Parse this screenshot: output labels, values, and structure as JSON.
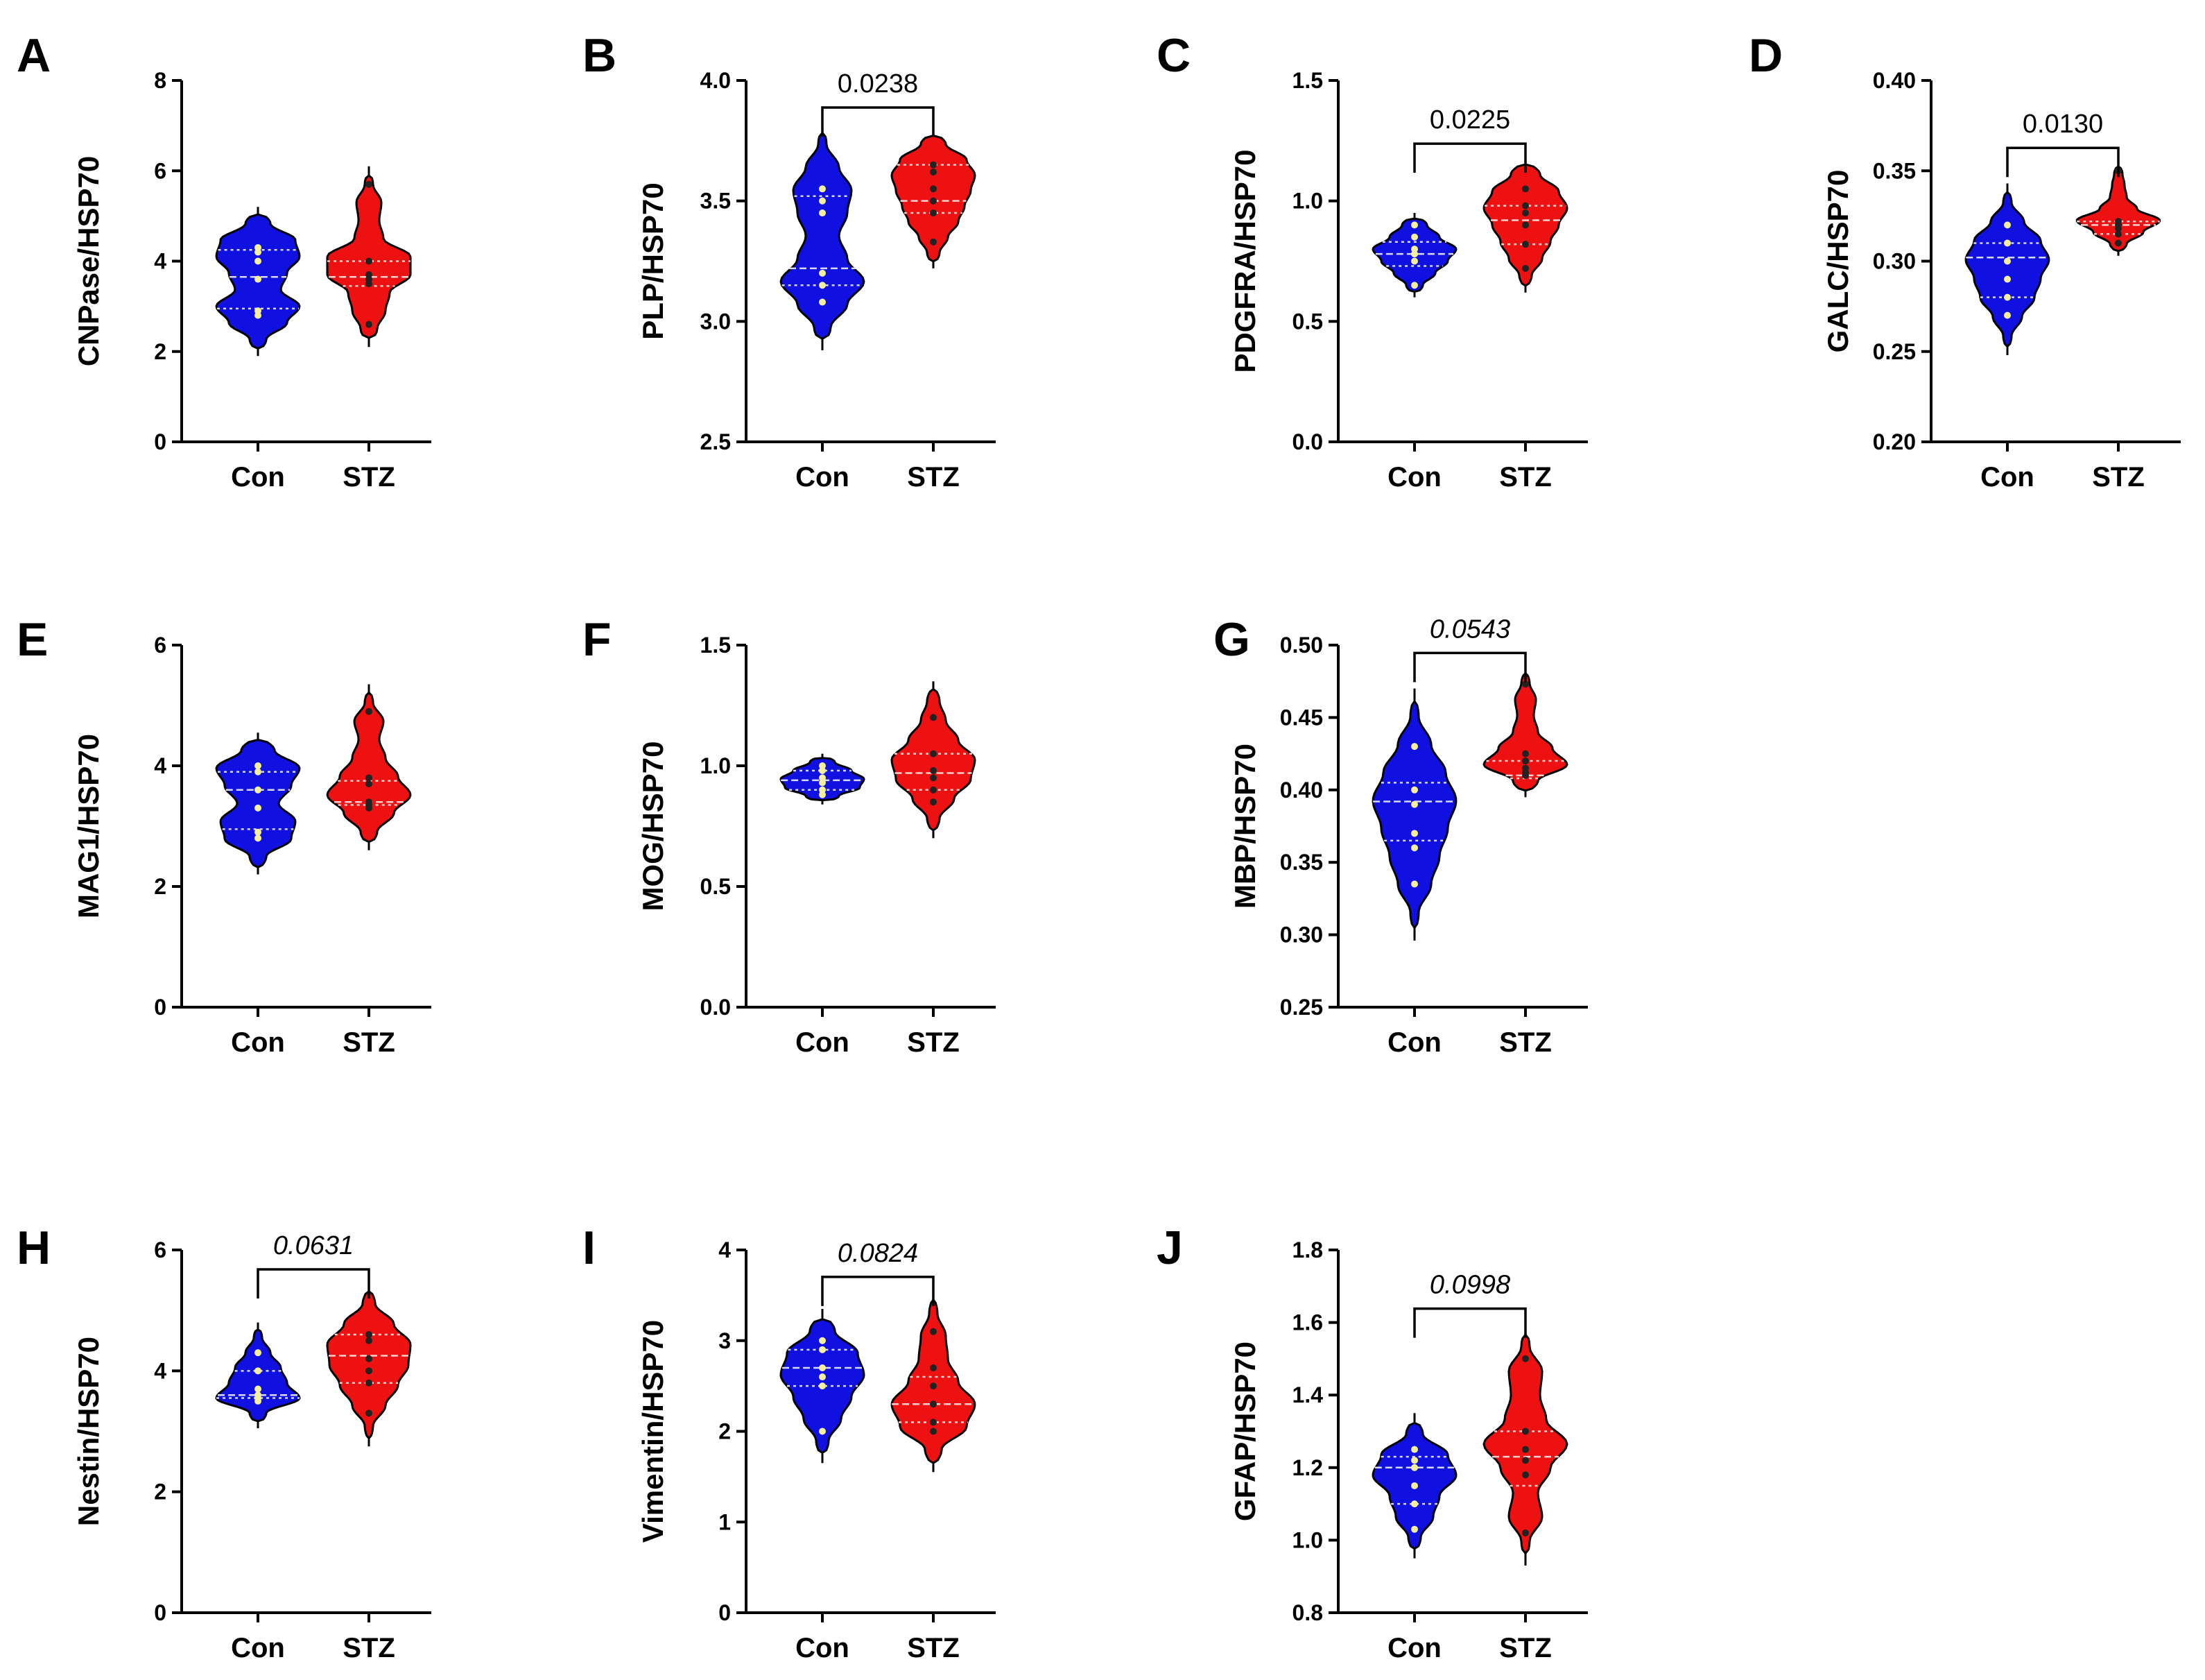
{
  "colors": {
    "con": "#1010e0",
    "stz": "#ee1111",
    "outline": "#000000",
    "point_con": "#f4f0a0",
    "point_stz": "#222222"
  },
  "chart_data": [
    {
      "panel": "A",
      "type": "violin",
      "ylabel": "CNPase/HSP70",
      "ylim": [
        0,
        8
      ],
      "yticks": [
        "0",
        "2",
        "4",
        "6",
        "8"
      ],
      "categories": [
        "Con",
        "STZ"
      ],
      "series": [
        {
          "name": "Con",
          "values": [
            2.8,
            2.9,
            3.6,
            4.0,
            4.2,
            4.3
          ],
          "min": 1.9,
          "max": 5.2,
          "quartiles": [
            2.95,
            3.65,
            4.25
          ],
          "shape": [
            0.2,
            0.7,
            1.0,
            0.55,
            0.7,
            1.0,
            0.9,
            0.3
          ]
        },
        {
          "name": "STZ",
          "values": [
            2.6,
            3.5,
            3.6,
            3.7,
            4.0,
            5.7
          ],
          "min": 2.1,
          "max": 6.1,
          "quartiles": [
            3.45,
            3.65,
            4.0
          ],
          "shape": [
            0.2,
            0.4,
            0.5,
            1.0,
            1.0,
            0.35,
            0.25,
            0.3,
            0.1
          ]
        }
      ],
      "pvalue": ""
    },
    {
      "panel": "B",
      "type": "violin",
      "ylabel": "PLP/HSP70",
      "ylim": [
        2.5,
        4.0
      ],
      "yticks": [
        "2.5",
        "3.0",
        "3.5",
        "4.0"
      ],
      "categories": [
        "Con",
        "STZ"
      ],
      "series": [
        {
          "name": "Con",
          "values": [
            3.08,
            3.15,
            3.2,
            3.45,
            3.5,
            3.55
          ],
          "min": 2.88,
          "max": 3.83,
          "quartiles": [
            3.15,
            3.22,
            3.52
          ],
          "shape": [
            0.2,
            0.6,
            1.0,
            0.6,
            0.4,
            0.6,
            0.7,
            0.4,
            0.1
          ]
        },
        {
          "name": "STZ",
          "values": [
            3.33,
            3.45,
            3.5,
            3.55,
            3.62,
            3.65
          ],
          "min": 3.22,
          "max": 3.8,
          "quartiles": [
            3.45,
            3.5,
            3.65
          ],
          "shape": [
            0.15,
            0.35,
            0.6,
            0.75,
            0.9,
            1.0,
            0.8,
            0.3
          ]
        }
      ],
      "pvalue": "0.0238",
      "pvalue_italic": false
    },
    {
      "panel": "C",
      "type": "violin",
      "ylabel": "PDGFRA/HSP70",
      "ylim": [
        0,
        1.5
      ],
      "yticks": [
        "0.0",
        "0.5",
        "1.0",
        "1.5"
      ],
      "categories": [
        "Con",
        "STZ"
      ],
      "series": [
        {
          "name": "Con",
          "values": [
            0.65,
            0.75,
            0.78,
            0.8,
            0.85,
            0.9
          ],
          "min": 0.6,
          "max": 0.95,
          "quartiles": [
            0.73,
            0.78,
            0.83
          ],
          "shape": [
            0.2,
            0.5,
            0.8,
            1.0,
            0.6,
            0.3
          ]
        },
        {
          "name": "STZ",
          "values": [
            0.72,
            0.82,
            0.9,
            0.95,
            0.98,
            1.05
          ],
          "min": 0.62,
          "max": 1.18,
          "quartiles": [
            0.82,
            0.92,
            0.98
          ],
          "shape": [
            0.15,
            0.4,
            0.6,
            0.8,
            1.0,
            0.8,
            0.35
          ]
        }
      ],
      "pvalue": "0.0225",
      "pvalue_italic": false
    },
    {
      "panel": "D",
      "type": "violin",
      "ylabel": "GALC/HSP70",
      "ylim": [
        0.2,
        0.4
      ],
      "yticks": [
        "0.20",
        "0.25",
        "0.30",
        "0.35",
        "0.40"
      ],
      "categories": [
        "Con",
        "STZ"
      ],
      "series": [
        {
          "name": "Con",
          "values": [
            0.27,
            0.28,
            0.29,
            0.3,
            0.31,
            0.32
          ],
          "min": 0.248,
          "max": 0.343,
          "quartiles": [
            0.28,
            0.302,
            0.31
          ],
          "shape": [
            0.1,
            0.35,
            0.65,
            0.8,
            1.0,
            0.8,
            0.4,
            0.1
          ]
        },
        {
          "name": "STZ",
          "values": [
            0.31,
            0.315,
            0.318,
            0.32,
            0.322,
            0.35
          ],
          "min": 0.303,
          "max": 0.355,
          "quartiles": [
            0.315,
            0.32,
            0.322
          ],
          "shape": [
            0.2,
            0.6,
            1.0,
            0.45,
            0.2,
            0.15,
            0.1
          ]
        }
      ],
      "pvalue": "0.0130",
      "pvalue_italic": false
    },
    {
      "panel": "E",
      "type": "violin",
      "ylabel": "MAG1/HSP70",
      "ylim": [
        0,
        6
      ],
      "yticks": [
        "0",
        "2",
        "4",
        "6"
      ],
      "categories": [
        "Con",
        "STZ"
      ],
      "series": [
        {
          "name": "Con",
          "values": [
            2.8,
            2.9,
            3.3,
            3.6,
            3.9,
            4.0
          ],
          "min": 2.2,
          "max": 4.55,
          "quartiles": [
            2.95,
            3.6,
            3.9
          ],
          "shape": [
            0.2,
            0.8,
            0.9,
            0.5,
            0.8,
            1.0,
            0.4
          ]
        },
        {
          "name": "STZ",
          "values": [
            3.3,
            3.35,
            3.4,
            3.7,
            3.8,
            4.9
          ],
          "min": 2.6,
          "max": 5.35,
          "quartiles": [
            3.35,
            3.4,
            3.75
          ],
          "shape": [
            0.2,
            0.6,
            1.0,
            0.7,
            0.4,
            0.25,
            0.35,
            0.1
          ]
        }
      ],
      "pvalue": ""
    },
    {
      "panel": "F",
      "type": "violin",
      "ylabel": "MOG/HSP70",
      "ylim": [
        0,
        1.5
      ],
      "yticks": [
        "0.0",
        "0.5",
        "1.0",
        "1.5"
      ],
      "categories": [
        "Con",
        "STZ"
      ],
      "series": [
        {
          "name": "Con",
          "values": [
            0.88,
            0.9,
            0.93,
            0.95,
            0.98,
            1.0
          ],
          "min": 0.84,
          "max": 1.05,
          "quartiles": [
            0.9,
            0.94,
            0.98
          ],
          "shape": [
            0.4,
            0.9,
            1.0,
            0.7,
            0.3
          ]
        },
        {
          "name": "STZ",
          "values": [
            0.85,
            0.9,
            0.95,
            0.98,
            1.05,
            1.2
          ],
          "min": 0.7,
          "max": 1.35,
          "quartiles": [
            0.9,
            0.97,
            1.05
          ],
          "shape": [
            0.15,
            0.5,
            0.9,
            1.0,
            0.6,
            0.3,
            0.15
          ]
        }
      ],
      "pvalue": ""
    },
    {
      "panel": "G",
      "type": "violin",
      "ylabel": "MBP/HSP70",
      "ylim": [
        0.25,
        0.5
      ],
      "yticks": [
        "0.25",
        "0.30",
        "0.35",
        "0.40",
        "0.45",
        "0.50"
      ],
      "categories": [
        "Con",
        "STZ"
      ],
      "series": [
        {
          "name": "Con",
          "values": [
            0.335,
            0.36,
            0.37,
            0.39,
            0.4,
            0.43
          ],
          "min": 0.296,
          "max": 0.47,
          "quartiles": [
            0.365,
            0.392,
            0.405
          ],
          "shape": [
            0.1,
            0.4,
            0.6,
            0.8,
            1.0,
            0.75,
            0.4,
            0.1
          ]
        },
        {
          "name": "STZ",
          "values": [
            0.41,
            0.412,
            0.415,
            0.42,
            0.425,
            0.473
          ],
          "min": 0.395,
          "max": 0.485,
          "quartiles": [
            0.408,
            0.41,
            0.42
          ],
          "shape": [
            0.3,
            1.0,
            0.65,
            0.3,
            0.2,
            0.25,
            0.1
          ]
        }
      ],
      "pvalue": "0.0543",
      "pvalue_italic": true
    },
    {
      "panel": "H",
      "type": "violin",
      "ylabel": "Nestin/HSP70",
      "ylim": [
        0,
        6
      ],
      "yticks": [
        "0",
        "2",
        "4",
        "6"
      ],
      "categories": [
        "Con",
        "STZ"
      ],
      "series": [
        {
          "name": "Con",
          "values": [
            3.5,
            3.55,
            3.6,
            3.7,
            4.0,
            4.3
          ],
          "min": 3.05,
          "max": 4.8,
          "quartiles": [
            3.55,
            3.6,
            4.0
          ],
          "shape": [
            0.2,
            1.0,
            0.7,
            0.55,
            0.3,
            0.1
          ]
        },
        {
          "name": "STZ",
          "values": [
            3.3,
            3.8,
            4.0,
            4.2,
            4.5,
            4.6
          ],
          "min": 2.75,
          "max": 5.45,
          "quartiles": [
            3.8,
            4.25,
            4.6
          ],
          "shape": [
            0.1,
            0.4,
            0.7,
            0.95,
            1.0,
            0.6,
            0.15
          ]
        }
      ],
      "pvalue": "0.0631",
      "pvalue_italic": true
    },
    {
      "panel": "I",
      "type": "violin",
      "ylabel": "Vimentin/HSP70",
      "ylim": [
        0,
        4
      ],
      "yticks": [
        "0",
        "1",
        "2",
        "3",
        "4"
      ],
      "categories": [
        "Con",
        "STZ"
      ],
      "series": [
        {
          "name": "Con",
          "values": [
            2.0,
            2.5,
            2.6,
            2.7,
            2.9,
            3.0
          ],
          "min": 1.65,
          "max": 3.35,
          "quartiles": [
            2.5,
            2.7,
            2.9
          ],
          "shape": [
            0.15,
            0.45,
            0.7,
            1.0,
            0.85,
            0.3
          ]
        },
        {
          "name": "STZ",
          "values": [
            2.0,
            2.1,
            2.3,
            2.5,
            2.7,
            3.1
          ],
          "min": 1.55,
          "max": 3.55,
          "quartiles": [
            2.1,
            2.3,
            2.6
          ],
          "shape": [
            0.2,
            0.8,
            1.0,
            0.6,
            0.35,
            0.3,
            0.1
          ]
        }
      ],
      "pvalue": "0.0824",
      "pvalue_italic": true
    },
    {
      "panel": "J",
      "type": "violin",
      "ylabel": "GFAP/HSP70",
      "ylim": [
        0.8,
        1.8
      ],
      "yticks": [
        "0.8",
        "1.0",
        "1.2",
        "1.4",
        "1.6",
        "1.8"
      ],
      "categories": [
        "Con",
        "STZ"
      ],
      "series": [
        {
          "name": "Con",
          "values": [
            1.03,
            1.1,
            1.15,
            1.2,
            1.22,
            1.25
          ],
          "min": 0.95,
          "max": 1.35,
          "quartiles": [
            1.1,
            1.2,
            1.23
          ],
          "shape": [
            0.15,
            0.45,
            0.6,
            1.0,
            0.8,
            0.2
          ]
        },
        {
          "name": "STZ",
          "values": [
            1.02,
            1.18,
            1.22,
            1.25,
            1.3,
            1.5
          ],
          "min": 0.93,
          "max": 1.6,
          "quartiles": [
            1.15,
            1.23,
            1.3
          ],
          "shape": [
            0.1,
            0.4,
            0.3,
            0.6,
            1.0,
            0.5,
            0.35,
            0.4,
            0.1
          ]
        }
      ],
      "pvalue": "0.0998",
      "pvalue_italic": true
    }
  ]
}
